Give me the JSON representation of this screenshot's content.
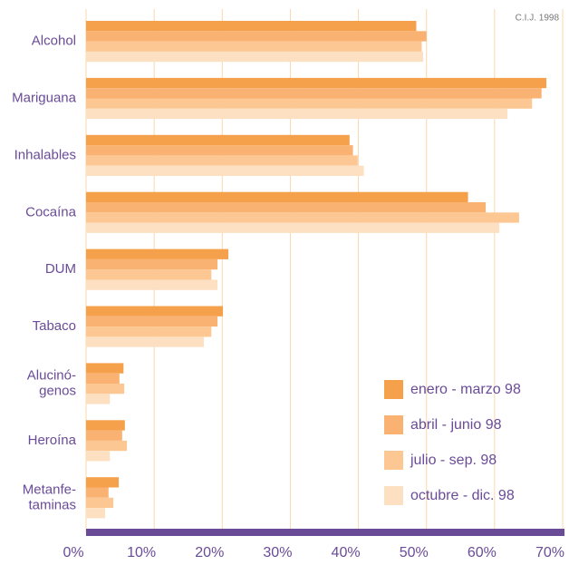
{
  "chart_data": {
    "type": "hbar",
    "annotation": "C.I.J. 1998",
    "categories": [
      "Alcohol",
      "Mariguana",
      "Inhalables",
      "Cocaína",
      "DUM",
      "Tabaco",
      "Alucinó-\ngenos",
      "Heroína",
      "Metanfe-\ntaminas"
    ],
    "series": [
      {
        "name": "enero - marzo 98",
        "color": "#f5a04b",
        "values": [
          48.5,
          67.6,
          38.7,
          56.1,
          20.9,
          20.1,
          5.5,
          5.7,
          4.8
        ]
      },
      {
        "name": "abril - junio 98",
        "color": "#f9b271",
        "values": [
          50,
          66.9,
          39.2,
          58.7,
          19.3,
          19.3,
          4.9,
          5.3,
          3.3
        ]
      },
      {
        "name": "julio - sep. 98",
        "color": "#fcc792",
        "values": [
          49.3,
          65.5,
          39.9,
          63.6,
          18.4,
          18.4,
          5.6,
          6.0,
          4.0
        ]
      },
      {
        "name": "octubre - dic. 98",
        "color": "#fde0c2",
        "values": [
          49.5,
          61.9,
          40.8,
          60.7,
          19.3,
          17.3,
          3.5,
          3.5,
          2.8
        ]
      }
    ],
    "xlim": [
      0,
      70
    ],
    "xticks": [
      {
        "value": 0,
        "label": "0%"
      },
      {
        "value": 10,
        "label": "10%"
      },
      {
        "value": 20,
        "label": "20%"
      },
      {
        "value": 30,
        "label": "30%"
      },
      {
        "value": 40,
        "label": "40%"
      },
      {
        "value": 50,
        "label": "50%"
      },
      {
        "value": 60,
        "label": "60%"
      },
      {
        "value": 70,
        "label": "70%"
      }
    ],
    "grid": true,
    "legend": "bottom-right",
    "axis_color": "#6a4b98"
  }
}
